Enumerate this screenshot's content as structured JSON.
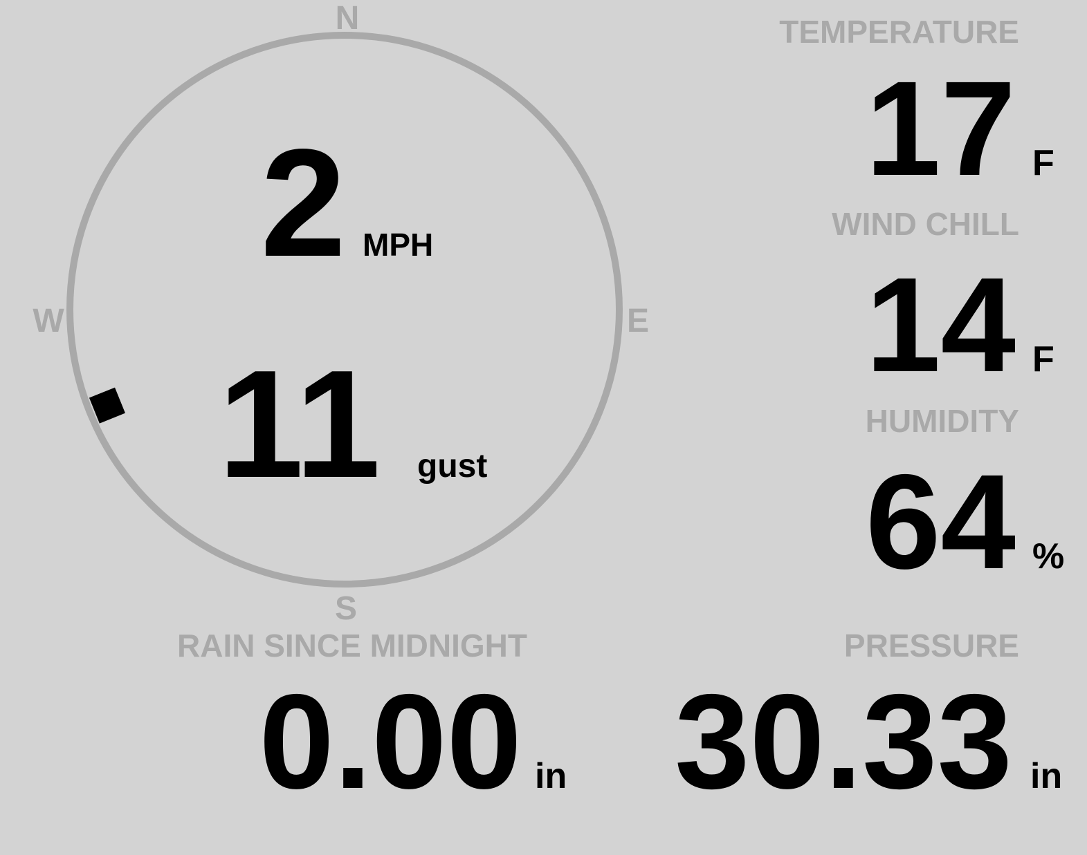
{
  "colors": {
    "background": "#d3d3d3",
    "label": "#a9a9a9",
    "value": "#000000"
  },
  "compass": {
    "n": "N",
    "e": "E",
    "s": "S",
    "w": "W",
    "wind_direction_deg": 248
  },
  "wind": {
    "speed": "2",
    "speed_unit": "MPH",
    "gust": "11",
    "gust_unit": "gust"
  },
  "temperature": {
    "label": "TEMPERATURE",
    "value": "17",
    "unit": "F"
  },
  "wind_chill": {
    "label": "WIND CHILL",
    "value": "14",
    "unit": "F"
  },
  "humidity": {
    "label": "HUMIDITY",
    "value": "64",
    "unit": "%"
  },
  "rain": {
    "label": "RAIN SINCE MIDNIGHT",
    "value": "0.00",
    "unit": "in"
  },
  "pressure": {
    "label": "PRESSURE",
    "value": "30.33",
    "unit": "in"
  }
}
